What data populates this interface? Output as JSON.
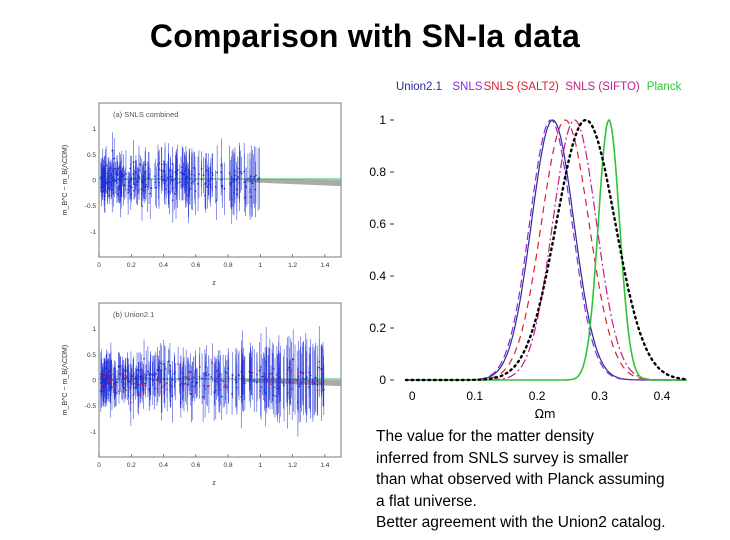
{
  "slide": {
    "title": "Comparison with SN-Ia data",
    "caption_lines": [
      "The value for the matter density",
      "inferred from SNLS survey is smaller",
      "than what observed with Planck assuming",
      "a flat universe.",
      "Better agreement with the Union2 catalog."
    ]
  },
  "chart_data": [
    {
      "type": "scatter",
      "panel_label": "(a) SNLS combined",
      "xlabel": "z",
      "ylabel": "m_B^C − m_B(ΛCDM)",
      "xlim": [
        0,
        1.5
      ],
      "ylim": [
        -1.5,
        1.5
      ],
      "x_ticks": [
        "0",
        "0.2",
        "0.4",
        "0.6",
        "0.8",
        "1",
        "1.2",
        "1.4"
      ],
      "y_ticks": [
        "1",
        "0.5",
        "0",
        "-0.5",
        "-1"
      ],
      "z_max": 1.0,
      "colors": {
        "points": "#1f2fd6",
        "band": "#888888",
        "reference": "#39c043"
      }
    },
    {
      "type": "scatter",
      "panel_label": "(b) Union2.1",
      "xlabel": "z",
      "ylabel": "m_B^C − m_B(ΛCDM)",
      "xlim": [
        0,
        1.5
      ],
      "ylim": [
        -1.5,
        1.5
      ],
      "x_ticks": [
        "0",
        "0.2",
        "0.4",
        "0.6",
        "0.8",
        "1",
        "1.2",
        "1.4"
      ],
      "y_ticks": [
        "1",
        "0.5",
        "0",
        "-0.5",
        "-1"
      ],
      "z_max": 1.4,
      "colors": {
        "points": "#1f2fd6",
        "highlight": "#e0203a",
        "band": "#888888",
        "reference": "#39c043"
      }
    },
    {
      "type": "line",
      "title": "",
      "xlabel": "Ωm",
      "ylabel": "",
      "xlim": [
        -0.01,
        0.44
      ],
      "ylim": [
        0,
        1.05
      ],
      "x_ticks": [
        0,
        0.1,
        0.2,
        0.3,
        0.4
      ],
      "x_tick_labels": [
        "0",
        "0.1",
        "0.2",
        "0.3",
        "0.4"
      ],
      "y_ticks": [
        0,
        0.2,
        0.4,
        0.6,
        0.8,
        1
      ],
      "y_tick_labels": [
        "0",
        "0.2",
        "0.4",
        "0.6",
        "0.8",
        "1"
      ],
      "legend_position": "top",
      "series": [
        {
          "name": "Union2.1",
          "color": "#2a2a9a",
          "dash": "",
          "peak": 0.225,
          "sigma": 0.034
        },
        {
          "name": "SNLS",
          "color": "#8a2bd6",
          "dash": "8 4",
          "peak": 0.222,
          "sigma": 0.034
        },
        {
          "name": "SNLS (SALT2)",
          "color": "#d8202a",
          "dash": "7 5",
          "peak": 0.245,
          "sigma": 0.038
        },
        {
          "name": "SNLS (SIFTO)",
          "color": "#c21d88",
          "dash": "9 3 2 3",
          "peak": 0.26,
          "sigma": 0.035
        },
        {
          "name": "Planck",
          "color": "#2ec43a",
          "dash": "",
          "peak": 0.315,
          "sigma": 0.017
        },
        {
          "name": "",
          "color": "#000000",
          "dash": "1.6 4",
          "peak": 0.278,
          "sigma": 0.047
        }
      ]
    }
  ]
}
